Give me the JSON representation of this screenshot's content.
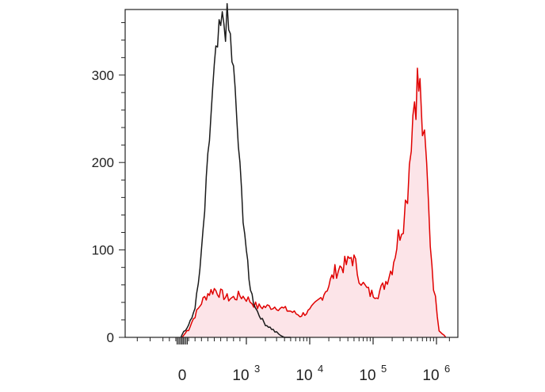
{
  "chart_data": {
    "type": "area",
    "xscale": "biexponential",
    "x_tick_labels": [
      {
        "base": "0",
        "exp": "",
        "value": 0
      },
      {
        "base": "10",
        "exp": "3",
        "value": 1000
      },
      {
        "base": "10",
        "exp": "4",
        "value": 10000
      },
      {
        "base": "10",
        "exp": "5",
        "value": 100000
      },
      {
        "base": "10",
        "exp": "6",
        "value": 1000000
      }
    ],
    "y_tick_labels": [
      "0",
      "100",
      "200",
      "300"
    ],
    "y_ticks": [
      0,
      100,
      200,
      300
    ],
    "ylim": [
      0,
      375
    ],
    "grid": false,
    "legend": "none",
    "series": [
      {
        "color": "#1a1a1a",
        "fill": "none",
        "x": [
          -20,
          0,
          50,
          100,
          150,
          200,
          250,
          300,
          350,
          400,
          450,
          500,
          550,
          600,
          650,
          700,
          750,
          800,
          850,
          900,
          950,
          1000,
          1100,
          1300,
          1600,
          2000,
          2500,
          3000,
          3500,
          4000,
          5000
        ],
        "y": [
          0,
          5,
          8,
          14,
          22,
          35,
          60,
          95,
          145,
          200,
          255,
          300,
          330,
          350,
          362,
          358,
          340,
          300,
          250,
          190,
          140,
          100,
          65,
          40,
          25,
          15,
          10,
          5,
          2,
          0,
          0
        ]
      },
      {
        "color": "#e00000",
        "fill": "#fce4e8",
        "x": [
          0,
          100,
          200,
          300,
          400,
          500,
          600,
          700,
          800,
          900,
          1000,
          1500,
          2000,
          3000,
          5000,
          7000,
          10000,
          15000,
          20000,
          25000,
          30000,
          40000,
          45000,
          50000,
          60000,
          70000,
          90000,
          120000,
          150000,
          200000,
          250000,
          300000,
          350000,
          400000,
          450000,
          500000,
          550000,
          600000,
          700000,
          800000,
          900000,
          1100000,
          1400000
        ],
        "y": [
          0,
          10,
          25,
          40,
          50,
          55,
          50,
          45,
          45,
          48,
          45,
          35,
          35,
          35,
          30,
          25,
          30,
          45,
          60,
          75,
          80,
          85,
          92,
          88,
          70,
          60,
          50,
          50,
          60,
          80,
          115,
          135,
          170,
          235,
          275,
          290,
          280,
          240,
          190,
          110,
          60,
          10,
          0
        ]
      }
    ]
  }
}
